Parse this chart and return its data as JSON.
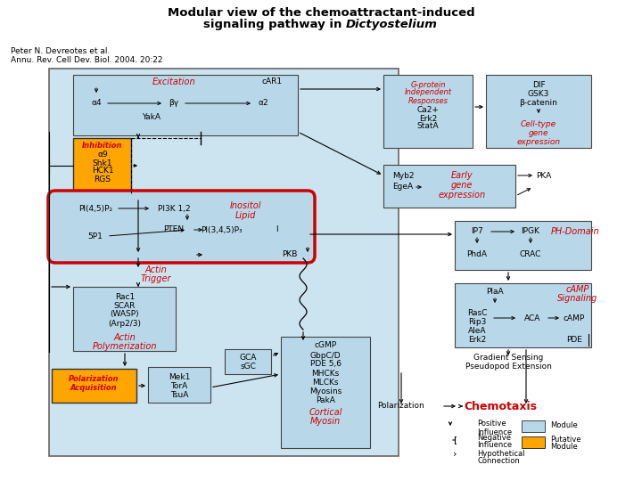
{
  "title_line1": "Modular view of the chemoattractant-induced",
  "title_line2": "signaling pathway in ",
  "title_italic": "Dictyostelium",
  "citation_line1": "Peter N. Devreotes et al.",
  "citation_line2": "Annu. Rev. Cell Dev. Biol. 2004. 20:22",
  "bg_color": "#ffffff",
  "module_fill": "#b8d8ea",
  "putative_fill": "#ffa500",
  "highlight_border": "#cc0000",
  "text_red": "#cc0000",
  "text_black": "#000000",
  "outer_fill": "#cce4f0"
}
